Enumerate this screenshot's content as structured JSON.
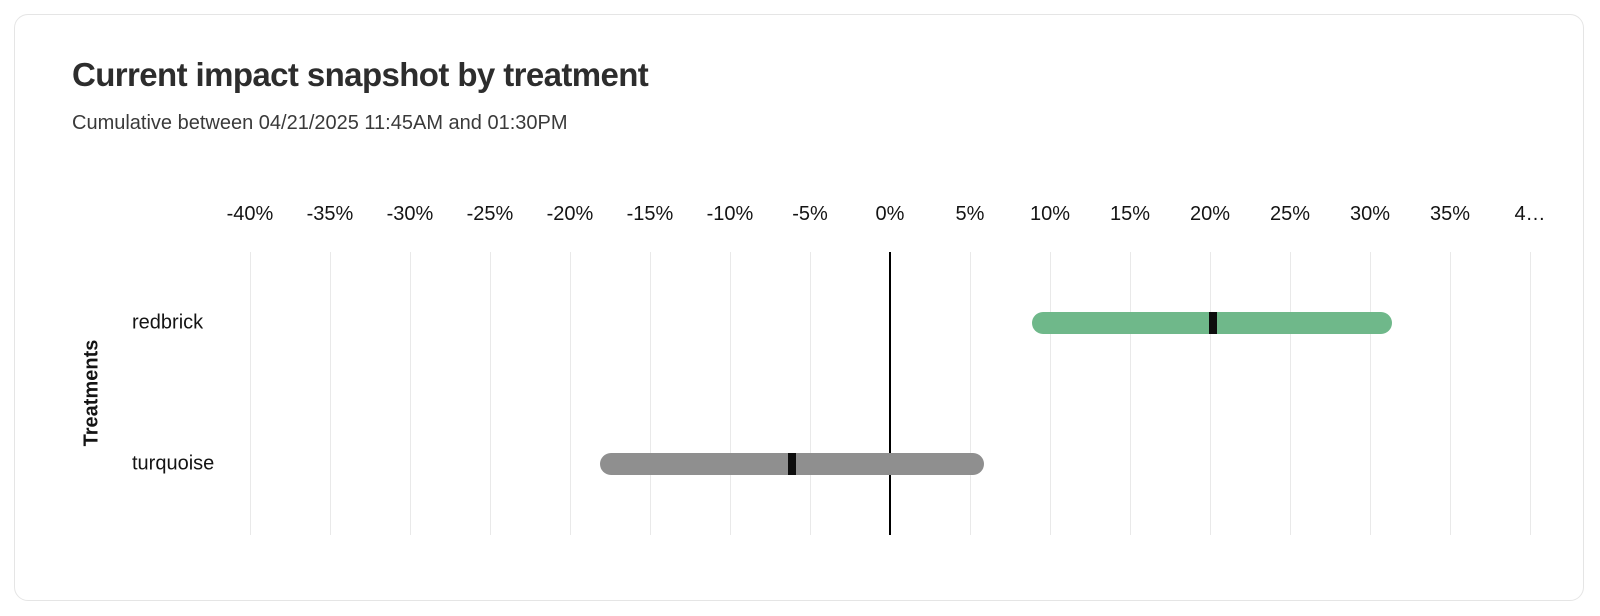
{
  "card": {
    "title": "Current impact snapshot by treatment",
    "subtitle": "Cumulative between 04/21/2025 11:45AM and 01:30PM"
  },
  "chart_data": {
    "type": "bar",
    "variant": "horizontal-range-bar-with-midpoint-marker",
    "title": "Current impact snapshot by treatment",
    "subtitle": "Cumulative between 04/21/2025 11:45AM and 01:30PM",
    "ylabel": "Treatments",
    "xlabel": "",
    "axis": {
      "min": -40,
      "max": 40,
      "step": 5,
      "unit": "%"
    },
    "grid": true,
    "legend": "none",
    "ticks": [
      {
        "value": -40,
        "label": "-40%"
      },
      {
        "value": -35,
        "label": "-35%"
      },
      {
        "value": -30,
        "label": "-30%"
      },
      {
        "value": -25,
        "label": "-25%"
      },
      {
        "value": -20,
        "label": "-20%"
      },
      {
        "value": -15,
        "label": "-15%"
      },
      {
        "value": -10,
        "label": "-10%"
      },
      {
        "value": -5,
        "label": "-5%"
      },
      {
        "value": 0,
        "label": "0%"
      },
      {
        "value": 5,
        "label": "5%"
      },
      {
        "value": 10,
        "label": "10%"
      },
      {
        "value": 15,
        "label": "15%"
      },
      {
        "value": 20,
        "label": "20%"
      },
      {
        "value": 25,
        "label": "25%"
      },
      {
        "value": 30,
        "label": "30%"
      },
      {
        "value": 35,
        "label": "35%"
      },
      {
        "value": 40,
        "label": "4…"
      }
    ],
    "series": [
      {
        "name": "redbrick",
        "low": 8.9,
        "mid": 20.2,
        "high": 31.4,
        "color": "#6fb88a"
      },
      {
        "name": "turquoise",
        "low": -18.1,
        "mid": -6.1,
        "high": 5.9,
        "color": "#8f8f8f"
      }
    ],
    "colors": {
      "marker": "#0d0d0d",
      "zero_line": "#000000",
      "grid": "#e9e9e9",
      "card_border": "#e5e5e5"
    }
  }
}
